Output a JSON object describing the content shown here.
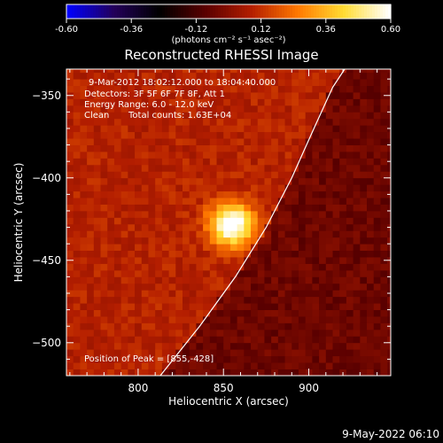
{
  "chart_data": {
    "type": "heatmap",
    "title": "Reconstructed RHESSI Image",
    "xlabel": "Heliocentric X (arcsec)",
    "ylabel": "Heliocentric Y (arcsec)",
    "xlim": [
      758,
      948
    ],
    "ylim": [
      -520,
      -334
    ],
    "xticks": [
      800,
      850,
      900
    ],
    "yticks": [
      -350,
      -400,
      -450,
      -500
    ],
    "colorbar": {
      "min": -0.6,
      "max": 0.6,
      "ticks": [
        "-0.60",
        "-0.36",
        "-0.12",
        "0.12",
        "0.36",
        "0.60"
      ],
      "units_label": "(photons cm⁻² s⁻¹ asec⁻²)",
      "colormap": [
        "#0000ff",
        "#23005a",
        "#000000",
        "#5a0000",
        "#b41e00",
        "#ff7800",
        "#ffdc32",
        "#ffffff"
      ]
    },
    "peak": {
      "x": 855,
      "y": -428,
      "value": 0.6,
      "sigma_arcsec": 9
    },
    "background_levels": {
      "limb_inside": 0.09,
      "limb_outside": -0.05
    },
    "limb_curve": {
      "x": [
        813,
        836,
        857,
        875,
        890,
        903,
        914,
        921
      ],
      "y": [
        -520,
        -490,
        -460,
        -430,
        -400,
        -370,
        -345,
        -334
      ]
    },
    "annotations": {
      "time": "9-Mar-2012 18:02:12.000 to 18:04:40.000",
      "detectors": "Detectors: 3F 5F 6F 7F 8F, Att 1",
      "energy": "Energy Range: 6.0 - 12.0 keV",
      "clean_label": "Clean",
      "counts": "Total counts: 1.63E+04",
      "peak_text": "Position of Peak = [855,-428]"
    },
    "timestamp": "9-May-2022 06:10"
  }
}
